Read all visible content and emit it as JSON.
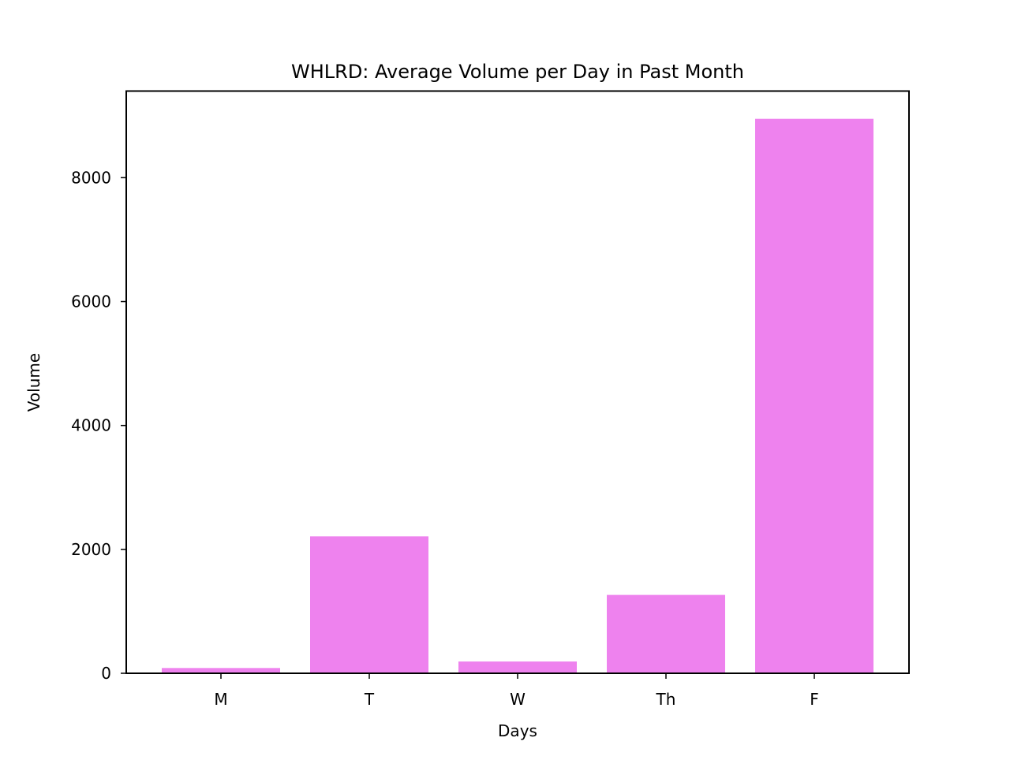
{
  "chart_data": {
    "type": "bar",
    "title": "WHLRD: Average Volume per Day in Past Month",
    "xlabel": "Days",
    "ylabel": "Volume",
    "categories": [
      "M",
      "T",
      "W",
      "Th",
      "F"
    ],
    "values": [
      85,
      2210,
      190,
      1265,
      8950
    ],
    "ylim": [
      0,
      9398
    ],
    "yticks": [
      0,
      2000,
      4000,
      6000,
      8000
    ],
    "grid": false,
    "legend": "none",
    "bar_color": "#ee82ee"
  }
}
